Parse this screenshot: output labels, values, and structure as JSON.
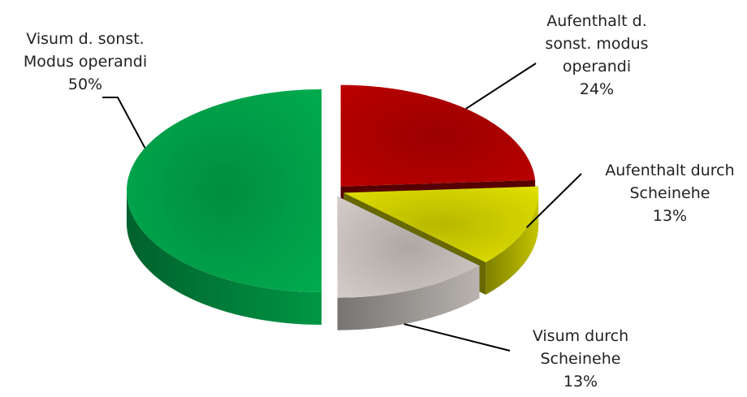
{
  "chart_data": {
    "type": "pie3d",
    "categories": [
      "Aufenthalt d. sonst. modus operandi",
      "Aufenthalt durch Scheinehe",
      "Visum durch Scheinehe",
      "Visum d. sonst. Modus operandi"
    ],
    "values": [
      24,
      13,
      13,
      50
    ],
    "value_labels": [
      "24%",
      "13%",
      "13%",
      "50%"
    ],
    "colors": [
      "#c00000",
      "#e6e600",
      "#d9d2ce",
      "#00b050"
    ]
  }
}
